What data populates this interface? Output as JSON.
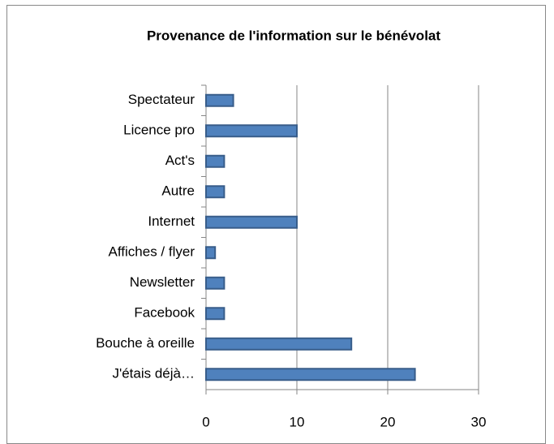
{
  "chart_data": {
    "type": "bar",
    "orientation": "horizontal",
    "title": "Provenance de l'information sur le bénévolat",
    "categories": [
      "Spectateur",
      "Licence pro",
      "Act's",
      "Autre",
      "Internet",
      "Affiches / flyer",
      "Newsletter",
      "Facebook",
      "Bouche à oreille",
      "J'étais déjà…"
    ],
    "values": [
      3,
      10,
      2,
      2,
      10,
      1,
      2,
      2,
      16,
      23
    ],
    "color": "#4f81bd",
    "xlim": [
      0,
      30
    ],
    "xticks": [
      0,
      10,
      20,
      30
    ],
    "grid": true
  }
}
